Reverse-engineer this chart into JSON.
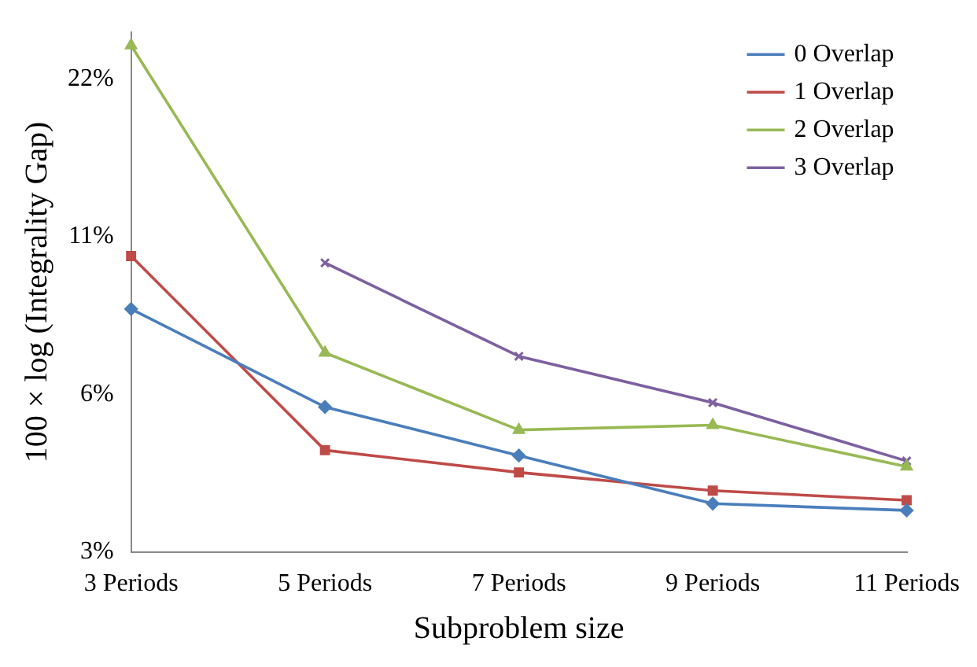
{
  "chart_data": {
    "type": "line",
    "xlabel": "Subproblem size",
    "ylabel": "100 × log (Integrality Gap)",
    "categories": [
      "3 Periods",
      "5 Periods",
      "7 Periods",
      "9 Periods",
      "11 Periods"
    ],
    "series": [
      {
        "name": "0 Overlap",
        "color": "#4a7ebb",
        "marker": "diamond",
        "values": [
          8.0,
          5.2,
          4.2,
          3.4,
          3.3
        ]
      },
      {
        "name": "1 Overlap",
        "color": "#be4b48",
        "marker": "square",
        "values": [
          10.1,
          4.3,
          3.9,
          3.6,
          3.45
        ]
      },
      {
        "name": "2 Overlap",
        "color": "#98b954",
        "marker": "triangle",
        "values": [
          25.5,
          6.6,
          4.7,
          4.8,
          4.0
        ]
      },
      {
        "name": "3 Overlap",
        "color": "#7d60a0",
        "marker": "cross",
        "values": [
          null,
          9.8,
          6.5,
          5.3,
          4.1
        ]
      }
    ],
    "log": "y",
    "ylim": [
      2.75,
      27
    ],
    "yticks": [
      {
        "value": 2.75,
        "label": "3%"
      },
      {
        "value": 5.5,
        "label": "6%"
      },
      {
        "value": 11,
        "label": "11%"
      },
      {
        "value": 22,
        "label": "22%"
      }
    ],
    "grid": false,
    "legend": "top right"
  }
}
